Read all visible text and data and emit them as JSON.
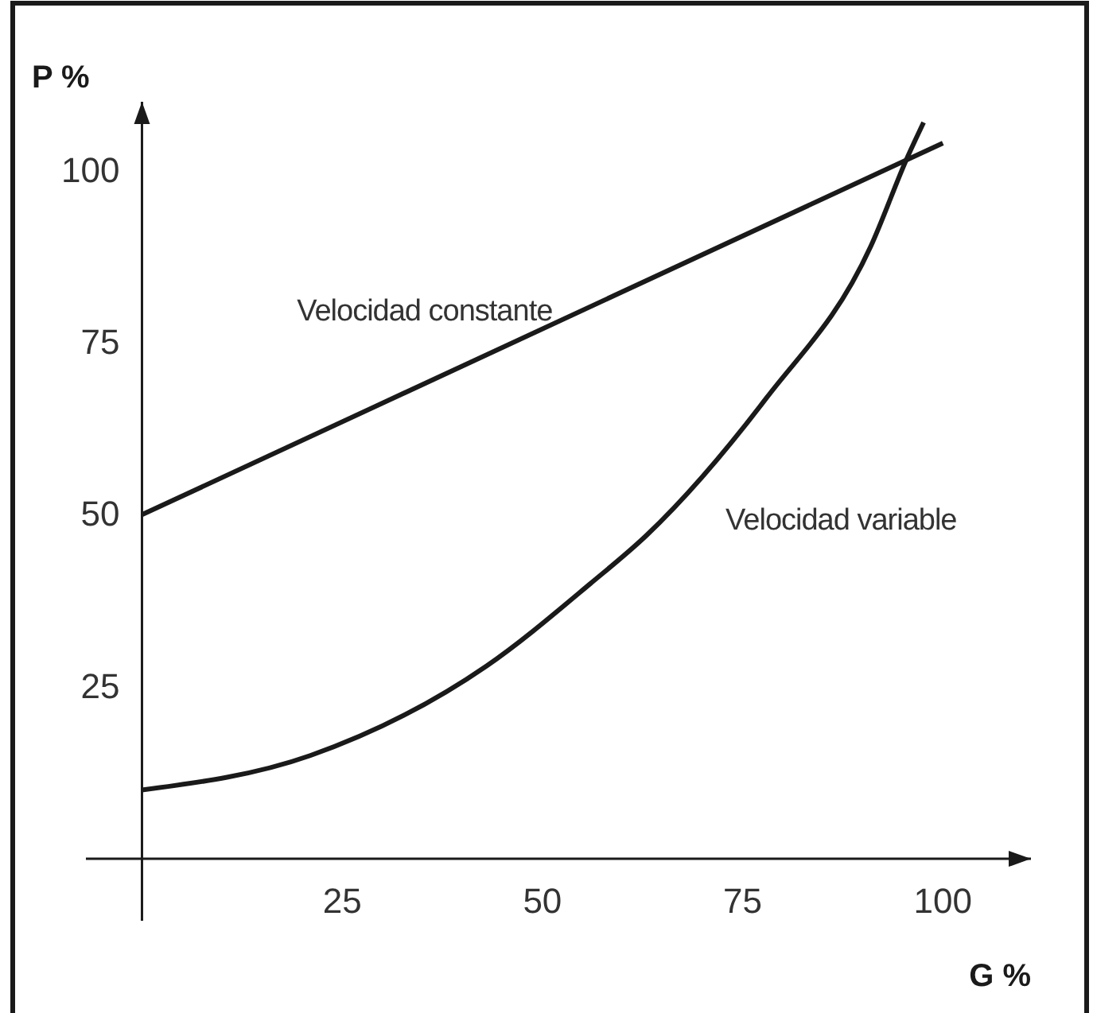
{
  "chart_data": {
    "type": "line",
    "xlabel": "G %",
    "ylabel": "P %",
    "xlim": [
      -7,
      111
    ],
    "ylim": [
      -9,
      110
    ],
    "xticks": [
      25,
      50,
      75,
      100
    ],
    "yticks": [
      25,
      50,
      75,
      100
    ],
    "grid": false,
    "legend": false,
    "marker": "none",
    "line_style": "solid",
    "series": [
      {
        "name": "Velocidad constante",
        "color": "#1a1a1a",
        "x": [
          0,
          100
        ],
        "values": [
          50,
          104
        ]
      },
      {
        "name": "Velocidad variable",
        "color": "#1a1a1a",
        "x": [
          0,
          21,
          43,
          56,
          63,
          78,
          91,
          95.6,
          97.6
        ],
        "values": [
          10,
          15,
          28,
          40,
          47,
          67,
          89,
          102,
          107
        ]
      }
    ]
  }
}
